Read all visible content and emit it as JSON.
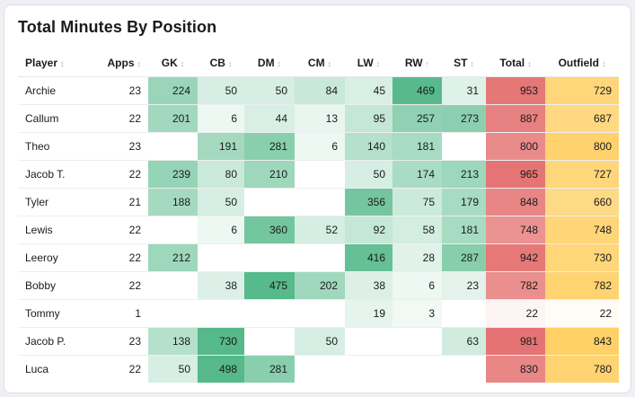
{
  "title": "Total Minutes By Position",
  "columns": [
    {
      "key": "player",
      "label": "Player"
    },
    {
      "key": "apps",
      "label": "Apps"
    },
    {
      "key": "gk",
      "label": "GK"
    },
    {
      "key": "cb",
      "label": "CB"
    },
    {
      "key": "dm",
      "label": "DM"
    },
    {
      "key": "cm",
      "label": "CM"
    },
    {
      "key": "lw",
      "label": "LW"
    },
    {
      "key": "rw",
      "label": "RW"
    },
    {
      "key": "st",
      "label": "ST"
    },
    {
      "key": "total",
      "label": "Total"
    },
    {
      "key": "outfield",
      "label": "Outfield"
    }
  ],
  "sort_icons": {
    "player": "↕",
    "apps": "↕",
    "gk": "↕",
    "cb": "↕",
    "dm": "↕",
    "cm": "↕",
    "lw": "↕",
    "rw": "↑",
    "st": "↕",
    "total": "↕",
    "outfield": "↕"
  },
  "rows": [
    {
      "player": "Archie",
      "apps": "23",
      "gk": "224",
      "cb": "50",
      "dm": "50",
      "cm": "84",
      "lw": "45",
      "rw": "469",
      "st": "31",
      "total": "953",
      "outfield": "729"
    },
    {
      "player": "Callum",
      "apps": "22",
      "gk": "201",
      "cb": "6",
      "dm": "44",
      "cm": "13",
      "lw": "95",
      "rw": "257",
      "st": "273",
      "total": "887",
      "outfield": "687"
    },
    {
      "player": "Theo",
      "apps": "23",
      "gk": "",
      "cb": "191",
      "dm": "281",
      "cm": "6",
      "lw": "140",
      "rw": "181",
      "st": "",
      "total": "800",
      "outfield": "800"
    },
    {
      "player": "Jacob T.",
      "apps": "22",
      "gk": "239",
      "cb": "80",
      "dm": "210",
      "cm": "",
      "lw": "50",
      "rw": "174",
      "st": "213",
      "total": "965",
      "outfield": "727"
    },
    {
      "player": "Tyler",
      "apps": "21",
      "gk": "188",
      "cb": "50",
      "dm": "",
      "cm": "",
      "lw": "356",
      "rw": "75",
      "st": "179",
      "total": "848",
      "outfield": "660"
    },
    {
      "player": "Lewis",
      "apps": "22",
      "gk": "",
      "cb": "6",
      "dm": "360",
      "cm": "52",
      "lw": "92",
      "rw": "58",
      "st": "181",
      "total": "748",
      "outfield": "748"
    },
    {
      "player": "Leeroy",
      "apps": "22",
      "gk": "212",
      "cb": "",
      "dm": "",
      "cm": "",
      "lw": "416",
      "rw": "28",
      "st": "287",
      "total": "942",
      "outfield": "730"
    },
    {
      "player": "Bobby",
      "apps": "22",
      "gk": "",
      "cb": "38",
      "dm": "475",
      "cm": "202",
      "lw": "38",
      "rw": "6",
      "st": "23",
      "total": "782",
      "outfield": "782"
    },
    {
      "player": "Tommy",
      "apps": "1",
      "gk": "",
      "cb": "",
      "dm": "",
      "cm": "",
      "lw": "19",
      "rw": "3",
      "st": "",
      "total": "22",
      "outfield": "22"
    },
    {
      "player": "Jacob P.",
      "apps": "23",
      "gk": "138",
      "cb": "730",
      "dm": "",
      "cm": "50",
      "lw": "",
      "rw": "",
      "st": "63",
      "total": "981",
      "outfield": "843"
    },
    {
      "player": "Luca",
      "apps": "22",
      "gk": "50",
      "cb": "498",
      "dm": "281",
      "cm": "",
      "lw": "",
      "rw": "",
      "st": "",
      "total": "830",
      "outfield": "780"
    }
  ],
  "colors": {
    "position_scale": "#55b98a",
    "total_scale": "#e57373",
    "outfield_scale": "#ffd066"
  },
  "color_ranges": {
    "position_max": 480,
    "total_min": 22,
    "total_max": 981,
    "outfield_min": 22,
    "outfield_max": 843
  }
}
